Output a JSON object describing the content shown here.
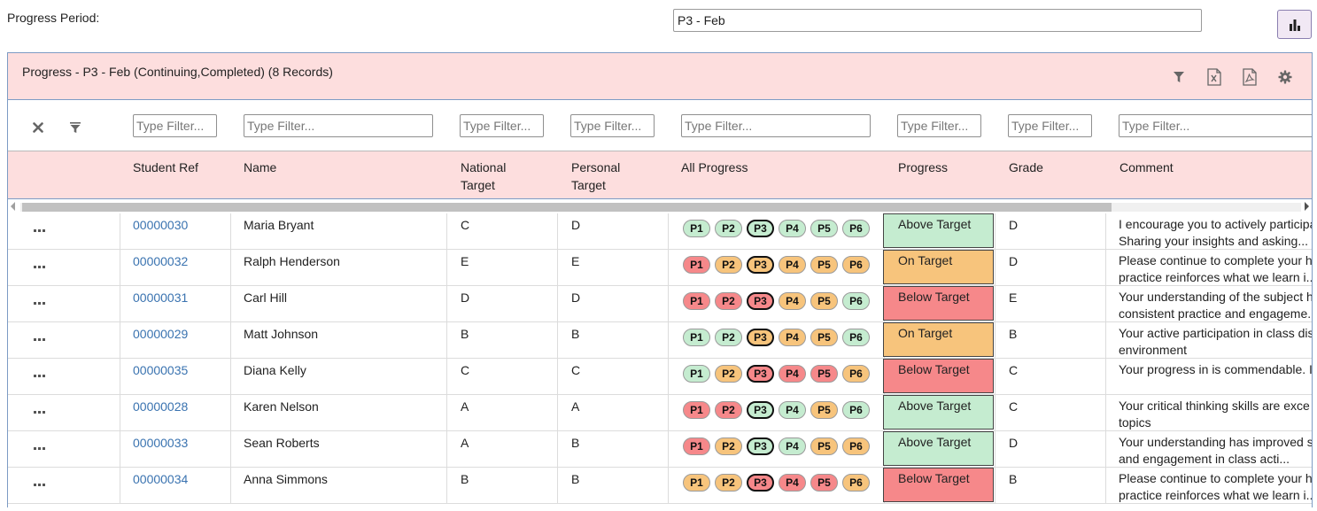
{
  "period": {
    "label": "Progress Period:",
    "value": "P3 - Feb"
  },
  "panel": {
    "title": "Progress - P3 - Feb (Continuing,Completed) (8 Records)"
  },
  "filters": {
    "placeholder": "Type Filter..."
  },
  "columns": {
    "student_ref": "Student Ref",
    "name": "Name",
    "national_target_1": "National",
    "national_target_2": "Target",
    "personal_target_1": "Personal",
    "personal_target_2": "Target",
    "all_progress": "All Progress",
    "progress": "Progress",
    "grade": "Grade",
    "comment": "Comment"
  },
  "colors": {
    "green": "#c5ecd0",
    "amber": "#f7c47c",
    "red": "#f6888a",
    "header_bg": "#fddede"
  },
  "rows": [
    {
      "ref": "00000030",
      "name": "Maria Bryant",
      "national": "C",
      "personal": "D",
      "pills": [
        {
          "l": "P1",
          "c": "green"
        },
        {
          "l": "P2",
          "c": "green"
        },
        {
          "l": "P3",
          "c": "green"
        },
        {
          "l": "P4",
          "c": "green"
        },
        {
          "l": "P5",
          "c": "green"
        },
        {
          "l": "P6",
          "c": "green"
        }
      ],
      "progress": "Above Target",
      "progress_color": "green",
      "grade": "D",
      "comment_1": "I encourage you to actively participa",
      "comment_2": "Sharing your insights and asking..."
    },
    {
      "ref": "00000032",
      "name": "Ralph Henderson",
      "national": "E",
      "personal": "E",
      "pills": [
        {
          "l": "P1",
          "c": "red"
        },
        {
          "l": "P2",
          "c": "amber"
        },
        {
          "l": "P3",
          "c": "amber"
        },
        {
          "l": "P4",
          "c": "amber"
        },
        {
          "l": "P5",
          "c": "amber"
        },
        {
          "l": "P6",
          "c": "amber"
        }
      ],
      "progress": "On Target",
      "progress_color": "amber",
      "grade": "D",
      "comment_1": "Please continue to complete your h",
      "comment_2": "practice reinforces what we learn i..."
    },
    {
      "ref": "00000031",
      "name": "Carl Hill",
      "national": "D",
      "personal": "D",
      "pills": [
        {
          "l": "P1",
          "c": "red"
        },
        {
          "l": "P2",
          "c": "red"
        },
        {
          "l": "P3",
          "c": "red"
        },
        {
          "l": "P4",
          "c": "amber"
        },
        {
          "l": "P5",
          "c": "amber"
        },
        {
          "l": "P6",
          "c": "green"
        }
      ],
      "progress": "Below Target",
      "progress_color": "red",
      "grade": "E",
      "comment_1": "Your understanding of the subject h",
      "comment_2": "consistent practice and engageme..."
    },
    {
      "ref": "00000029",
      "name": "Matt Johnson",
      "national": "B",
      "personal": "B",
      "pills": [
        {
          "l": "P1",
          "c": "green"
        },
        {
          "l": "P2",
          "c": "green"
        },
        {
          "l": "P3",
          "c": "amber"
        },
        {
          "l": "P4",
          "c": "amber"
        },
        {
          "l": "P5",
          "c": "amber"
        },
        {
          "l": "P6",
          "c": "green"
        }
      ],
      "progress": "On Target",
      "progress_color": "amber",
      "grade": "B",
      "comment_1": "Your active participation in class dis",
      "comment_2": "environment"
    },
    {
      "ref": "00000035",
      "name": "Diana Kelly",
      "national": "C",
      "personal": "C",
      "pills": [
        {
          "l": "P1",
          "c": "green"
        },
        {
          "l": "P2",
          "c": "amber"
        },
        {
          "l": "P3",
          "c": "red"
        },
        {
          "l": "P4",
          "c": "red"
        },
        {
          "l": "P5",
          "c": "red"
        },
        {
          "l": "P6",
          "c": "amber"
        }
      ],
      "progress": "Below Target",
      "progress_color": "red",
      "grade": "C",
      "comment_1": "Your progress in is commendable. I",
      "comment_2": ""
    },
    {
      "ref": "00000028",
      "name": "Karen Nelson",
      "national": "A",
      "personal": "A",
      "pills": [
        {
          "l": "P1",
          "c": "red"
        },
        {
          "l": "P2",
          "c": "red"
        },
        {
          "l": "P3",
          "c": "green"
        },
        {
          "l": "P4",
          "c": "green"
        },
        {
          "l": "P5",
          "c": "amber"
        },
        {
          "l": "P6",
          "c": "green"
        }
      ],
      "progress": "Above Target",
      "progress_color": "green",
      "grade": "C",
      "comment_1": "Your critical thinking skills are exce",
      "comment_2": "topics"
    },
    {
      "ref": "00000033",
      "name": "Sean Roberts",
      "national": "A",
      "personal": "B",
      "pills": [
        {
          "l": "P1",
          "c": "red"
        },
        {
          "l": "P2",
          "c": "amber"
        },
        {
          "l": "P3",
          "c": "green"
        },
        {
          "l": "P4",
          "c": "green"
        },
        {
          "l": "P5",
          "c": "amber"
        },
        {
          "l": "P6",
          "c": "amber"
        }
      ],
      "progress": "Above Target",
      "progress_color": "green",
      "grade": "D",
      "comment_1": "Your understanding has improved s",
      "comment_2": "and engagement in class acti..."
    },
    {
      "ref": "00000034",
      "name": "Anna Simmons",
      "national": "B",
      "personal": "B",
      "pills": [
        {
          "l": "P1",
          "c": "amber"
        },
        {
          "l": "P2",
          "c": "amber"
        },
        {
          "l": "P3",
          "c": "red"
        },
        {
          "l": "P4",
          "c": "red"
        },
        {
          "l": "P5",
          "c": "red"
        },
        {
          "l": "P6",
          "c": "amber"
        }
      ],
      "progress": "Below Target",
      "progress_color": "red",
      "grade": "B",
      "comment_1": "Please continue to complete your h",
      "comment_2": "practice reinforces what we learn i..."
    }
  ]
}
